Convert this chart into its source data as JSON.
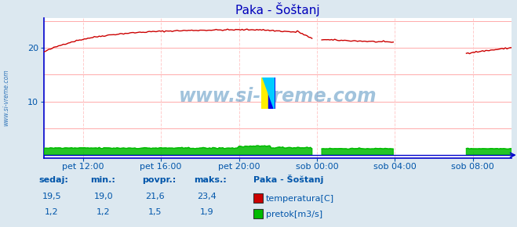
{
  "title": "Paka - Šoštanj",
  "bg_color": "#dce8f0",
  "plot_bg_color": "#ffffff",
  "grid_color_h": "#ffaaaa",
  "grid_color_v": "#ffcccc",
  "axis_color": "#0000cc",
  "title_color": "#0000bb",
  "label_color": "#0055aa",
  "watermark_text": "www.si-vreme.com",
  "watermark_color": "#4488bb",
  "watermark_alpha": 0.5,
  "ylim": [
    -0.5,
    25.5
  ],
  "yticks": [
    10,
    20
  ],
  "xlim": [
    0,
    288
  ],
  "xtick_positions": [
    24,
    72,
    120,
    168,
    216,
    264
  ],
  "xtick_labels": [
    "pet 12:00",
    "pet 16:00",
    "pet 20:00",
    "sob 00:00",
    "sob 04:00",
    "sob 08:00"
  ],
  "temp_color": "#cc0000",
  "flow_color": "#00bb00",
  "stats_labels": [
    "sedaj:",
    "min.:",
    "povpr.:",
    "maks.:"
  ],
  "station_label": "Paka - Šoštanj",
  "temp_label": "temperatura[C]",
  "flow_label": "pretok[m3/s]",
  "temp_sedaj": "19,5",
  "temp_min": "19,0",
  "temp_povpr": "21,6",
  "temp_maks": "23,4",
  "flow_sedaj": "1,2",
  "flow_min": "1,2",
  "flow_povpr": "1,5",
  "flow_maks": "1,9"
}
